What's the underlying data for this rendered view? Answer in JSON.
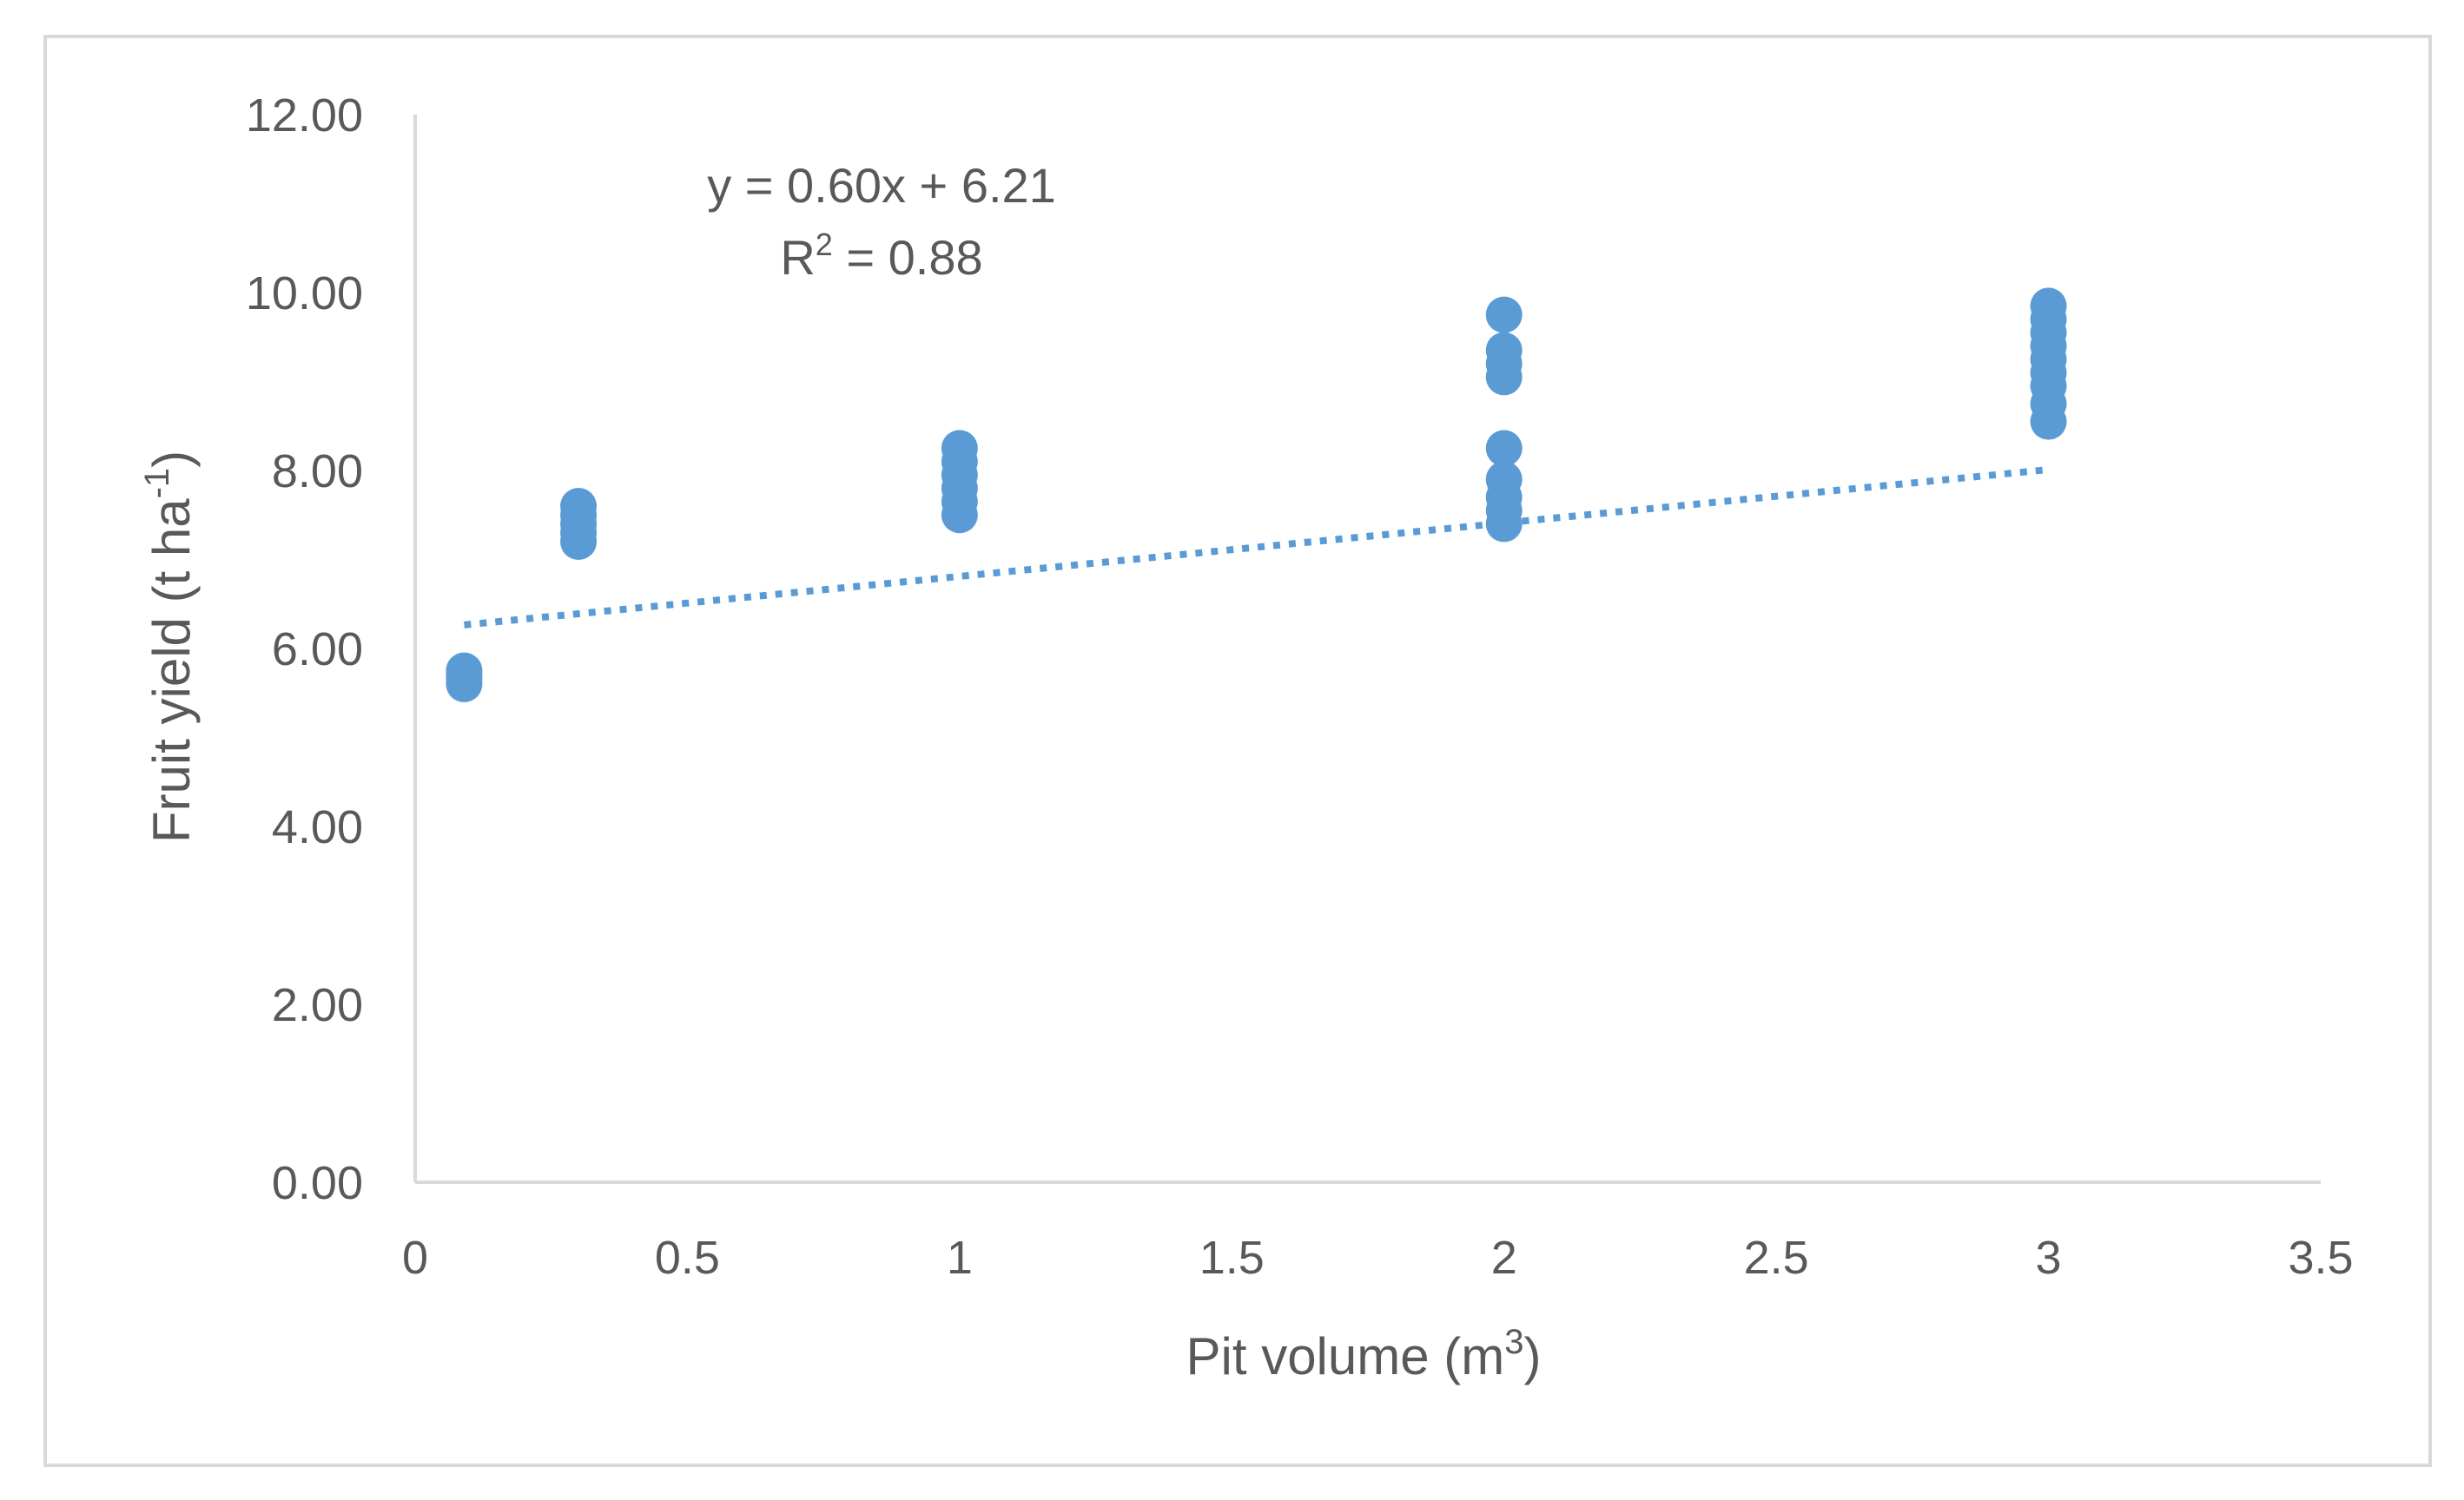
{
  "chart_data": {
    "type": "scatter",
    "title": "",
    "xlabel": "Pit volume (m",
    "xlabel_sup": "3",
    "xlabel_end": ")",
    "ylabel": "Fruit yield (t ha",
    "ylabel_sup": "-1",
    "ylabel_end": ")",
    "xlim": [
      0,
      3.5
    ],
    "ylim": [
      0,
      12
    ],
    "x_ticks": [
      0,
      0.5,
      1,
      1.5,
      2,
      2.5,
      3,
      3.5
    ],
    "x_tick_labels": [
      "0",
      "0.5",
      "1",
      "1.5",
      "2",
      "2.5",
      "3",
      "3.5"
    ],
    "y_ticks": [
      0,
      2,
      4,
      6,
      8,
      10,
      12
    ],
    "y_tick_labels": [
      "0.00",
      "2.00",
      "4.00",
      "6.00",
      "8.00",
      "10.00",
      "12.00"
    ],
    "grid": false,
    "series": [
      {
        "name": "Fruit yield",
        "color": "#5b9bd5",
        "points": [
          [
            0.09,
            5.6
          ],
          [
            0.09,
            5.65
          ],
          [
            0.09,
            5.7
          ],
          [
            0.09,
            5.75
          ],
          [
            0.3,
            7.2
          ],
          [
            0.3,
            7.3
          ],
          [
            0.3,
            7.4
          ],
          [
            0.3,
            7.5
          ],
          [
            0.3,
            7.6
          ],
          [
            1,
            7.5
          ],
          [
            1,
            7.65
          ],
          [
            1,
            7.8
          ],
          [
            1,
            7.95
          ],
          [
            1,
            8.1
          ],
          [
            1,
            8.25
          ],
          [
            2,
            7.4
          ],
          [
            2,
            7.55
          ],
          [
            2,
            7.7
          ],
          [
            2,
            7.9
          ],
          [
            2,
            8.25
          ],
          [
            2,
            9.05
          ],
          [
            2,
            9.2
          ],
          [
            2,
            9.35
          ],
          [
            2,
            9.75
          ],
          [
            3,
            8.55
          ],
          [
            3,
            8.75
          ],
          [
            3,
            8.95
          ],
          [
            3,
            9.1
          ],
          [
            3,
            9.25
          ],
          [
            3,
            9.4
          ],
          [
            3,
            9.55
          ],
          [
            3,
            9.7
          ],
          [
            3,
            9.85
          ]
        ]
      }
    ],
    "trendline": {
      "type": "linear",
      "slope": 0.6,
      "intercept": 6.21,
      "x_range": [
        0.09,
        3
      ],
      "style": "dotted",
      "color": "#5b9bd5",
      "equation_label": "y = 0.60x + 6.21",
      "r2_label_prefix": "R",
      "r2_label_sup": "2",
      "r2_label_value": " = 0.88"
    }
  }
}
